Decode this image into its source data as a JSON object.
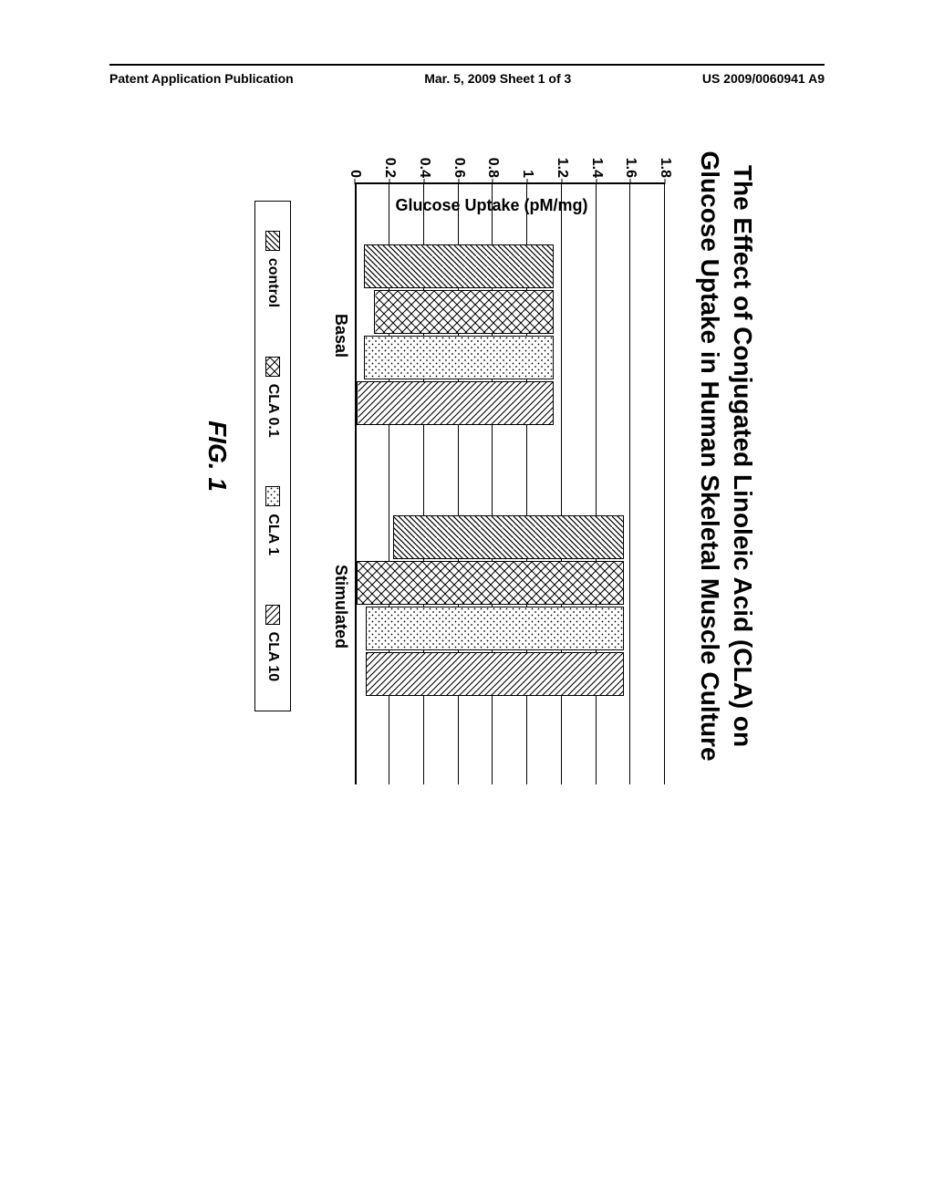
{
  "header": {
    "left": "Patent Application Publication",
    "center": "Mar. 5, 2009  Sheet 1 of 3",
    "right": "US 2009/0060941 A9"
  },
  "chart": {
    "type": "bar",
    "title_line1": "The Effect of Conjugated Linoleic Acid (CLA) on",
    "title_line2": "Glucose Uptake in Human Skeletal Muscle Culture",
    "ylabel": "Glucose Uptake (pM/mg)",
    "ylim": [
      0,
      1.8
    ],
    "ytick_step": 0.2,
    "yticks": [
      "0",
      "0.2",
      "0.4",
      "0.6",
      "0.8",
      "1",
      "1.2",
      "1.4",
      "1.6",
      "1.8"
    ],
    "categories": [
      "Basal",
      "Stimulated"
    ],
    "series": [
      "control",
      "CLA 0.1",
      "CLA 1",
      "CLA 10"
    ],
    "patterns": [
      "diag-bl-tr-sparse",
      "crosshatch",
      "dots",
      "diag-tl-br-dense"
    ],
    "values": {
      "Basal": [
        1.1,
        1.04,
        1.1,
        1.14
      ],
      "Stimulated": [
        1.34,
        1.55,
        1.5,
        1.5
      ]
    },
    "background_color": "#ffffff",
    "border_color": "#000000"
  },
  "figure_label": "FIG. 1"
}
